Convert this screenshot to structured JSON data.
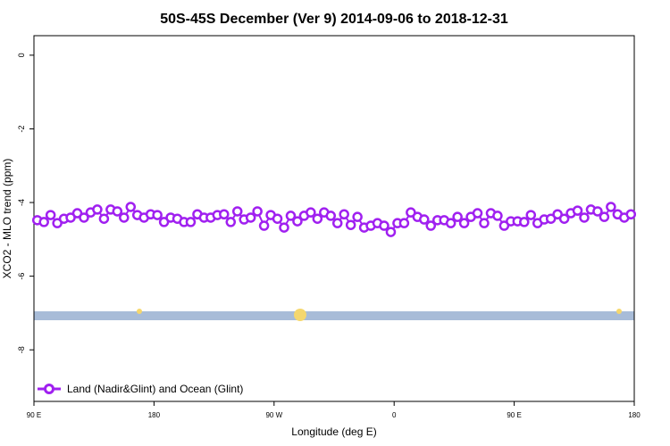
{
  "chart_data": {
    "type": "line",
    "title": "50S-45S December (Ver 9)   2014-09-06 to 2018-12-31",
    "x_label": "Longitude (deg E)",
    "y_label": "XCO2 - MLO trend (ppm)",
    "xlim": [
      90,
      540
    ],
    "ylim": [
      -9.4,
      0.53
    ],
    "xticks": [
      {
        "value": 90,
        "label": "90 E"
      },
      {
        "value": 180,
        "label": "180"
      },
      {
        "value": 270,
        "label": "90 W"
      },
      {
        "value": 360,
        "label": "0"
      },
      {
        "value": 450,
        "label": "90 E"
      },
      {
        "value": 540,
        "label": "180"
      }
    ],
    "yticks": [
      0,
      -2,
      -4,
      -6,
      -8
    ],
    "legend_position": "bottom-left",
    "x": [
      92.5,
      97.5,
      102.5,
      107.5,
      112.5,
      117.5,
      122.5,
      127.5,
      132.5,
      137.5,
      142.5,
      147.5,
      152.5,
      157.5,
      162.5,
      167.5,
      172.5,
      177.5,
      182.5,
      187.5,
      192.5,
      197.5,
      202.5,
      207.5,
      212.5,
      217.5,
      222.5,
      227.5,
      232.5,
      237.5,
      242.5,
      247.5,
      252.5,
      257.5,
      262.5,
      267.5,
      272.5,
      277.5,
      282.5,
      287.5,
      292.5,
      297.5,
      302.5,
      307.5,
      312.5,
      317.5,
      322.5,
      327.5,
      332.5,
      337.5,
      342.5,
      347.5,
      352.5,
      357.5,
      362.5,
      367.5,
      372.5,
      377.5,
      382.5,
      387.5,
      392.5,
      397.5,
      402.5,
      407.5,
      412.5,
      417.5,
      422.5,
      427.5,
      432.5,
      437.5,
      442.5,
      447.5,
      452.5,
      457.5,
      462.5,
      467.5,
      472.5,
      477.5,
      482.5,
      487.5,
      492.5,
      497.5,
      502.5,
      507.5,
      512.5,
      517.5,
      522.5,
      527.5,
      532.5,
      537.5
    ],
    "series": [
      {
        "name": "Land (Nadir&Glint) and Ocean (Glint)",
        "color": "#a020f0",
        "values": [
          -4.48,
          -4.53,
          -4.34,
          -4.56,
          -4.44,
          -4.41,
          -4.29,
          -4.41,
          -4.27,
          -4.19,
          -4.44,
          -4.19,
          -4.24,
          -4.41,
          -4.12,
          -4.34,
          -4.41,
          -4.32,
          -4.34,
          -4.53,
          -4.41,
          -4.44,
          -4.53,
          -4.53,
          -4.32,
          -4.41,
          -4.41,
          -4.34,
          -4.32,
          -4.53,
          -4.24,
          -4.46,
          -4.41,
          -4.24,
          -4.63,
          -4.34,
          -4.44,
          -4.68,
          -4.36,
          -4.51,
          -4.36,
          -4.27,
          -4.44,
          -4.27,
          -4.36,
          -4.56,
          -4.32,
          -4.61,
          -4.39,
          -4.68,
          -4.63,
          -4.56,
          -4.63,
          -4.8,
          -4.56,
          -4.56,
          -4.27,
          -4.39,
          -4.46,
          -4.63,
          -4.48,
          -4.48,
          -4.56,
          -4.39,
          -4.56,
          -4.39,
          -4.29,
          -4.56,
          -4.29,
          -4.36,
          -4.63,
          -4.51,
          -4.51,
          -4.53,
          -4.34,
          -4.56,
          -4.46,
          -4.44,
          -4.32,
          -4.44,
          -4.29,
          -4.22,
          -4.41,
          -4.19,
          -4.24,
          -4.39,
          -4.12,
          -4.32,
          -4.41,
          -4.32
        ]
      }
    ]
  }
}
